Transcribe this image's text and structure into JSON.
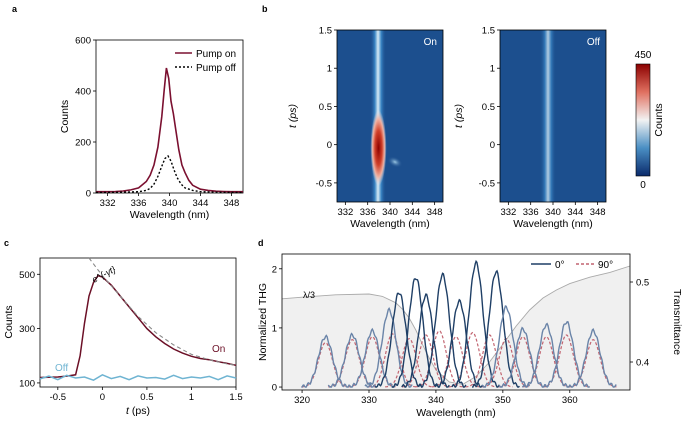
{
  "chart_data": [
    {
      "panel": "a",
      "type": "line",
      "xlabel": "Wavelength (nm)",
      "ylabel": "Counts",
      "xlim": [
        330.5,
        349.5
      ],
      "ylim": [
        0,
        600
      ],
      "xticks": [
        332,
        336,
        340,
        344,
        348
      ],
      "yticks": [
        0,
        200,
        400,
        600
      ],
      "legend": "top-right",
      "series": [
        {
          "name": "Pump on",
          "color": "#7b1030",
          "style": "solid",
          "x": [
            330.5,
            333,
            334,
            335,
            336,
            337,
            337.5,
            338,
            338.5,
            339,
            339.3,
            339.6,
            339.9,
            340.2,
            340.5,
            340.8,
            341.2,
            341.6,
            342,
            342.5,
            343,
            344,
            345,
            346,
            347,
            348,
            349.5
          ],
          "y": [
            5,
            6,
            8,
            12,
            20,
            45,
            70,
            110,
            180,
            300,
            400,
            490,
            450,
            360,
            310,
            250,
            170,
            110,
            80,
            50,
            30,
            15,
            10,
            7,
            6,
            5,
            5
          ]
        },
        {
          "name": "Pump off",
          "color": "#000000",
          "style": "dotted",
          "x": [
            330.5,
            334,
            336,
            337,
            337.5,
            338,
            338.5,
            339,
            339.4,
            339.8,
            340.2,
            340.6,
            341,
            341.5,
            342,
            343,
            344,
            346,
            349.5
          ],
          "y": [
            2,
            3,
            5,
            10,
            18,
            35,
            65,
            105,
            135,
            145,
            125,
            90,
            60,
            35,
            20,
            10,
            5,
            3,
            2
          ]
        }
      ]
    },
    {
      "panel": "b",
      "type": "heatmap",
      "xlabel": "Wavelength (nm)",
      "ylabel": "t (ps)",
      "xlim": [
        330.5,
        349.5
      ],
      "ylim": [
        -0.75,
        1.5
      ],
      "xticks": [
        332,
        336,
        340,
        344,
        348
      ],
      "yticks": [
        -0.5,
        0,
        0.5,
        1,
        1.5
      ],
      "maps": [
        {
          "label": "On"
        },
        {
          "label": "Off"
        }
      ],
      "colorbar": {
        "label": "Counts",
        "min": "0",
        "max": "450",
        "colors": [
          "#0a2a6b",
          "#4a8fc4",
          "#f2f2f2",
          "#e07060",
          "#8b0000"
        ]
      }
    },
    {
      "panel": "c",
      "type": "line",
      "xlabel": "t (ps)",
      "ylabel": "Counts",
      "xlim": [
        -0.7,
        1.5
      ],
      "ylim": [
        85,
        560
      ],
      "xticks": [
        -0.5,
        0,
        0.5,
        1,
        1.5
      ],
      "yticks": [
        100,
        300,
        500
      ],
      "annotations": [
        "On",
        "Off",
        "e^{-γt}"
      ],
      "series": [
        {
          "name": "On",
          "color": "#6b0f26",
          "x": [
            -0.7,
            -0.5,
            -0.4,
            -0.3,
            -0.25,
            -0.2,
            -0.15,
            -0.1,
            -0.05,
            0,
            0.1,
            0.2,
            0.3,
            0.4,
            0.5,
            0.6,
            0.7,
            0.8,
            0.9,
            1.0,
            1.1,
            1.2,
            1.3,
            1.4,
            1.5
          ],
          "y": [
            120,
            122,
            125,
            130,
            200,
            320,
            420,
            470,
            495,
            490,
            460,
            420,
            380,
            340,
            300,
            270,
            245,
            225,
            210,
            198,
            190,
            185,
            178,
            172,
            165
          ]
        },
        {
          "name": "Off",
          "color": "#6fb4d2",
          "x": [
            -0.7,
            -0.6,
            -0.5,
            -0.4,
            -0.3,
            -0.2,
            -0.1,
            0,
            0.1,
            0.2,
            0.3,
            0.4,
            0.5,
            0.6,
            0.7,
            0.8,
            0.9,
            1.0,
            1.1,
            1.2,
            1.3,
            1.4,
            1.5
          ],
          "y": [
            115,
            125,
            112,
            128,
            118,
            122,
            110,
            130,
            116,
            124,
            112,
            126,
            118,
            120,
            114,
            128,
            116,
            122,
            118,
            124,
            112,
            126,
            118
          ]
        },
        {
          "name": "e^{-γt}",
          "color": "#888888",
          "style": "dashed",
          "x": [
            -0.15,
            0,
            0.2,
            0.4,
            0.6,
            0.8,
            1.0,
            1.2,
            1.4,
            1.5
          ],
          "y": [
            560,
            495,
            420,
            345,
            285,
            240,
            205,
            185,
            170,
            165
          ]
        }
      ]
    },
    {
      "panel": "d",
      "type": "line",
      "xlabel": "Wavelength (nm)",
      "ylabel": "Normalized THG",
      "y2label": "Transmittance",
      "xlim": [
        317,
        369
      ],
      "ylim": [
        -0.05,
        2.25
      ],
      "y2lim": [
        0.365,
        0.535
      ],
      "xticks": [
        320,
        330,
        340,
        350,
        360
      ],
      "yticks": [
        0,
        1,
        2
      ],
      "y2ticks": [
        0.4,
        0.5
      ],
      "legend": "top-right",
      "annotation": "λ/3",
      "series": [
        {
          "name": "0°",
          "color": "#1f3f66",
          "style": "solid",
          "peaks": [
            [
              323.5,
              0.85
            ],
            [
              327.5,
              0.88
            ],
            [
              330.5,
              0.95
            ],
            [
              333,
              1.3
            ],
            [
              334.5,
              1.6
            ],
            [
              337,
              1.85
            ],
            [
              338.5,
              1.55
            ],
            [
              341,
              1.9
            ],
            [
              343.5,
              1.45
            ],
            [
              346,
              2.1
            ],
            [
              349,
              1.95
            ],
            [
              350.5,
              1.35
            ],
            [
              353,
              0.98
            ],
            [
              356.5,
              1.05
            ],
            [
              359.5,
              1.1
            ],
            [
              363.5,
              0.95
            ]
          ]
        },
        {
          "name": "90°",
          "color": "#c26470",
          "style": "dashed",
          "peaks": [
            [
              323.5,
              0.75
            ],
            [
              327.5,
              0.8
            ],
            [
              330.5,
              0.85
            ],
            [
              333.5,
              0.9
            ],
            [
              336,
              0.82
            ],
            [
              338.5,
              0.88
            ],
            [
              340.5,
              0.95
            ],
            [
              343,
              0.85
            ],
            [
              345.5,
              0.92
            ],
            [
              348,
              0.88
            ],
            [
              350.5,
              0.82
            ],
            [
              353,
              0.85
            ],
            [
              356.5,
              0.85
            ],
            [
              359.5,
              0.88
            ],
            [
              363.5,
              0.8
            ]
          ]
        },
        {
          "name": "Transmittance",
          "color": "#aaaaaa",
          "fill": "#f0f0f0",
          "axis": "y2",
          "x": [
            317,
            320,
            325,
            330,
            332,
            334,
            335,
            336,
            337,
            338,
            339,
            340,
            342,
            344,
            346,
            348,
            350,
            352,
            354,
            356,
            358,
            360,
            363,
            366,
            369
          ],
          "y": [
            0.479,
            0.481,
            0.484,
            0.485,
            0.482,
            0.474,
            0.466,
            0.455,
            0.44,
            0.422,
            0.405,
            0.39,
            0.375,
            0.372,
            0.382,
            0.4,
            0.422,
            0.445,
            0.465,
            0.48,
            0.49,
            0.498,
            0.506,
            0.512,
            0.52
          ]
        }
      ]
    }
  ]
}
